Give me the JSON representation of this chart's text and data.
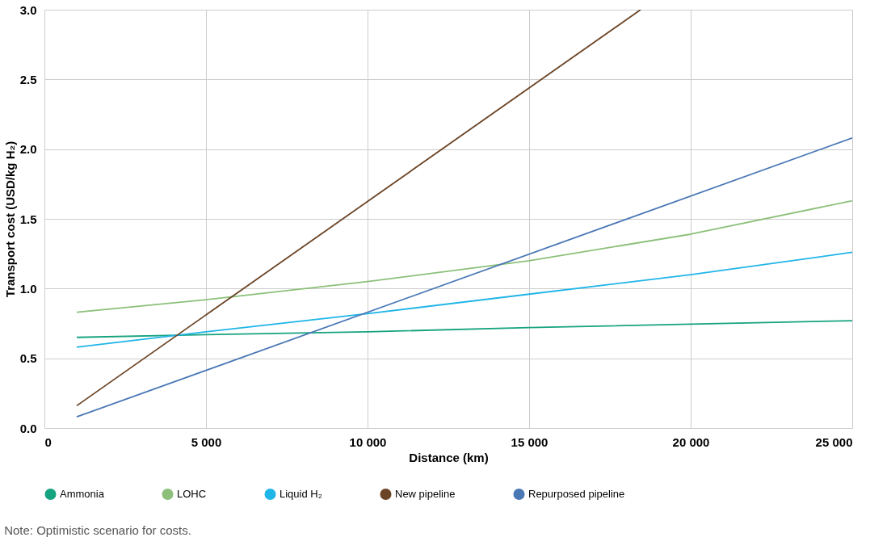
{
  "chart_data": {
    "type": "line",
    "xlabel": "Distance (km)",
    "ylabel": "Transport cost (USD/kg H₂)",
    "xlim": [
      0,
      25000
    ],
    "ylim": [
      0,
      3.0
    ],
    "xticks": [
      0,
      {
        "value": 5000,
        "label": "5 000"
      },
      {
        "value": 10000,
        "label": "10 000"
      },
      {
        "value": 15000,
        "label": "15 000"
      },
      {
        "value": 20000,
        "label": "20 000"
      },
      {
        "value": 25000,
        "label": "25 000"
      }
    ],
    "yticks": [
      {
        "value": 0,
        "label": "0.0"
      },
      0.5,
      {
        "value": 1,
        "label": "1.0"
      },
      1.5,
      {
        "value": 2,
        "label": "2.0"
      },
      2.5,
      {
        "value": 3,
        "label": "3.0"
      }
    ],
    "grid": true,
    "legend": "bottom",
    "marker": "none",
    "line_style": "solid",
    "annotations": [
      "Note: Optimistic scenario for costs."
    ],
    "series": [
      {
        "name": "Ammonia",
        "color": "#16a37f",
        "x": [
          1000,
          5000,
          10000,
          15000,
          20000,
          25000
        ],
        "values": [
          0.65,
          0.67,
          0.69,
          0.72,
          0.745,
          0.77
        ]
      },
      {
        "name": "LOHC",
        "color": "#8cc07a",
        "x": [
          1000,
          5000,
          10000,
          15000,
          20000,
          25000
        ],
        "values": [
          0.83,
          0.92,
          1.05,
          1.2,
          1.39,
          1.63
        ]
      },
      {
        "name": "Liquid H₂",
        "color": "#1fb5e8",
        "x": [
          1000,
          5000,
          10000,
          15000,
          20000,
          25000
        ],
        "values": [
          0.58,
          0.69,
          0.82,
          0.96,
          1.1,
          1.26
        ]
      },
      {
        "name": "New pipeline",
        "color": "#6b4426",
        "x": [
          1000,
          18450
        ],
        "values": [
          0.16,
          3.0
        ]
      },
      {
        "name": "Repurposed pipeline",
        "color": "#4a78b5",
        "x": [
          1000,
          25000
        ],
        "values": [
          0.08,
          2.08
        ]
      }
    ]
  }
}
